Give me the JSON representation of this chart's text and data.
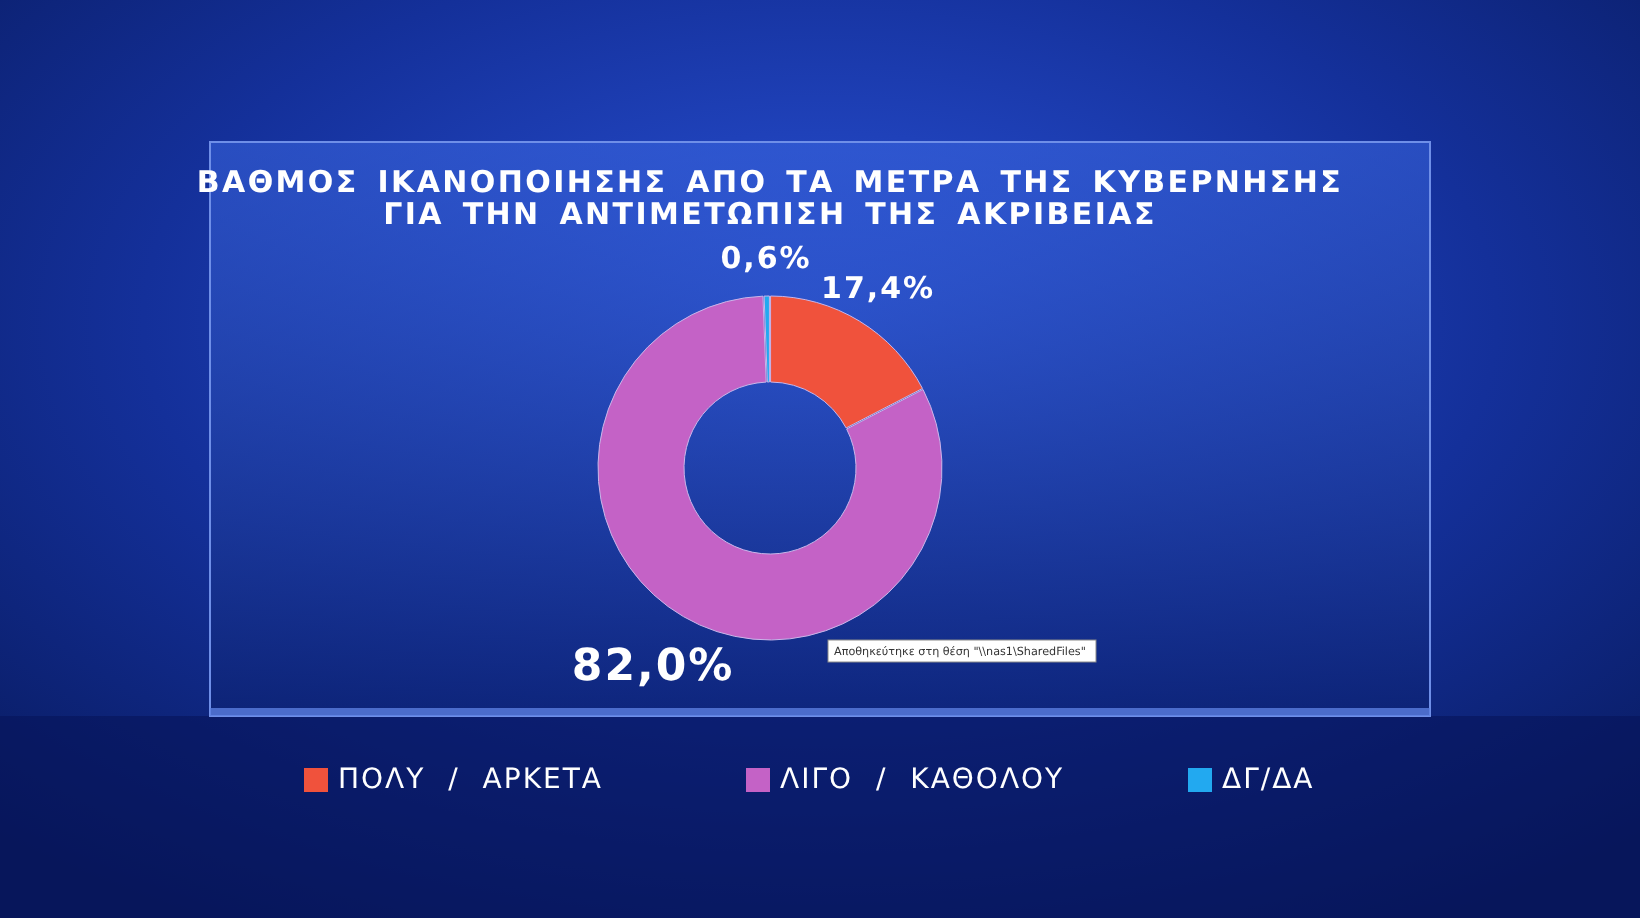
{
  "chart_data": {
    "type": "donut",
    "title": "ΒΑΘΜΟΣ ΙΚΑΝΟΠΟΙΗΣΗΣ ΑΠΟ ΤΑ ΜΕΤΡΑ ΤΗΣ ΚΥΒΕΡΝΗΣΗΣ\nΓΙΑ ΤΗΝ ΑΝΤΙΜΕΤΩΠΙΣΗ ΤΗΣ ΑΚΡΙΒΕΙΑΣ",
    "categories": [
      "ΠΟΛΥ / ΑΡΚΕΤΑ",
      "ΛΙΓΟ / ΚΑΘΟΛΟΥ",
      "ΔΓ/ΔΑ"
    ],
    "values": [
      17.4,
      82.0,
      0.6
    ],
    "colors": [
      "#f0523c",
      "#c462c6",
      "#22a9f0"
    ],
    "value_labels": [
      "17,4%",
      "82,0%",
      "0,6%"
    ],
    "legend": "bottom",
    "annotations": [
      "Αποθηκεύτηκε στη θέση \"\\\\nas1\\SharedFiles\""
    ]
  }
}
